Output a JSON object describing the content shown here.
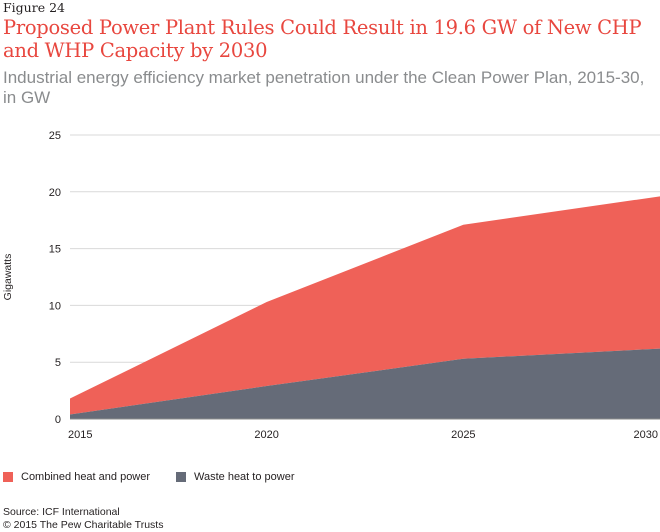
{
  "figure_label": "Figure 24",
  "title": "Proposed Power Plant Rules Could Result in 19.6 GW of New CHP and WHP Capacity by 2030",
  "subtitle": "Industrial energy efficiency market penetration under the Clean Power Plan, 2015-30, in GW",
  "source": "Source: ICF International",
  "copyright": "© 2015 The Pew Charitable Trusts",
  "colors": {
    "chp": "#ef6158",
    "whp": "#656b78",
    "grid": "#d9d9d9",
    "title": "#e8473f"
  },
  "chart_data": {
    "type": "area",
    "stacked": true,
    "x": [
      2015,
      2020,
      2025,
      2030
    ],
    "ylabel": "Gigawatts",
    "xlabel": "",
    "ylim": [
      0,
      25
    ],
    "yticks": [
      0,
      5,
      10,
      15,
      20,
      25
    ],
    "xticks": [
      2015,
      2020,
      2025,
      2030
    ],
    "grid": true,
    "legend_position": "bottom-left",
    "series": [
      {
        "name": "Waste heat to power",
        "values": [
          0.4,
          2.9,
          5.3,
          6.2
        ]
      },
      {
        "name": "Combined heat and power",
        "values": [
          1.4,
          7.4,
          11.8,
          13.4
        ]
      }
    ]
  }
}
